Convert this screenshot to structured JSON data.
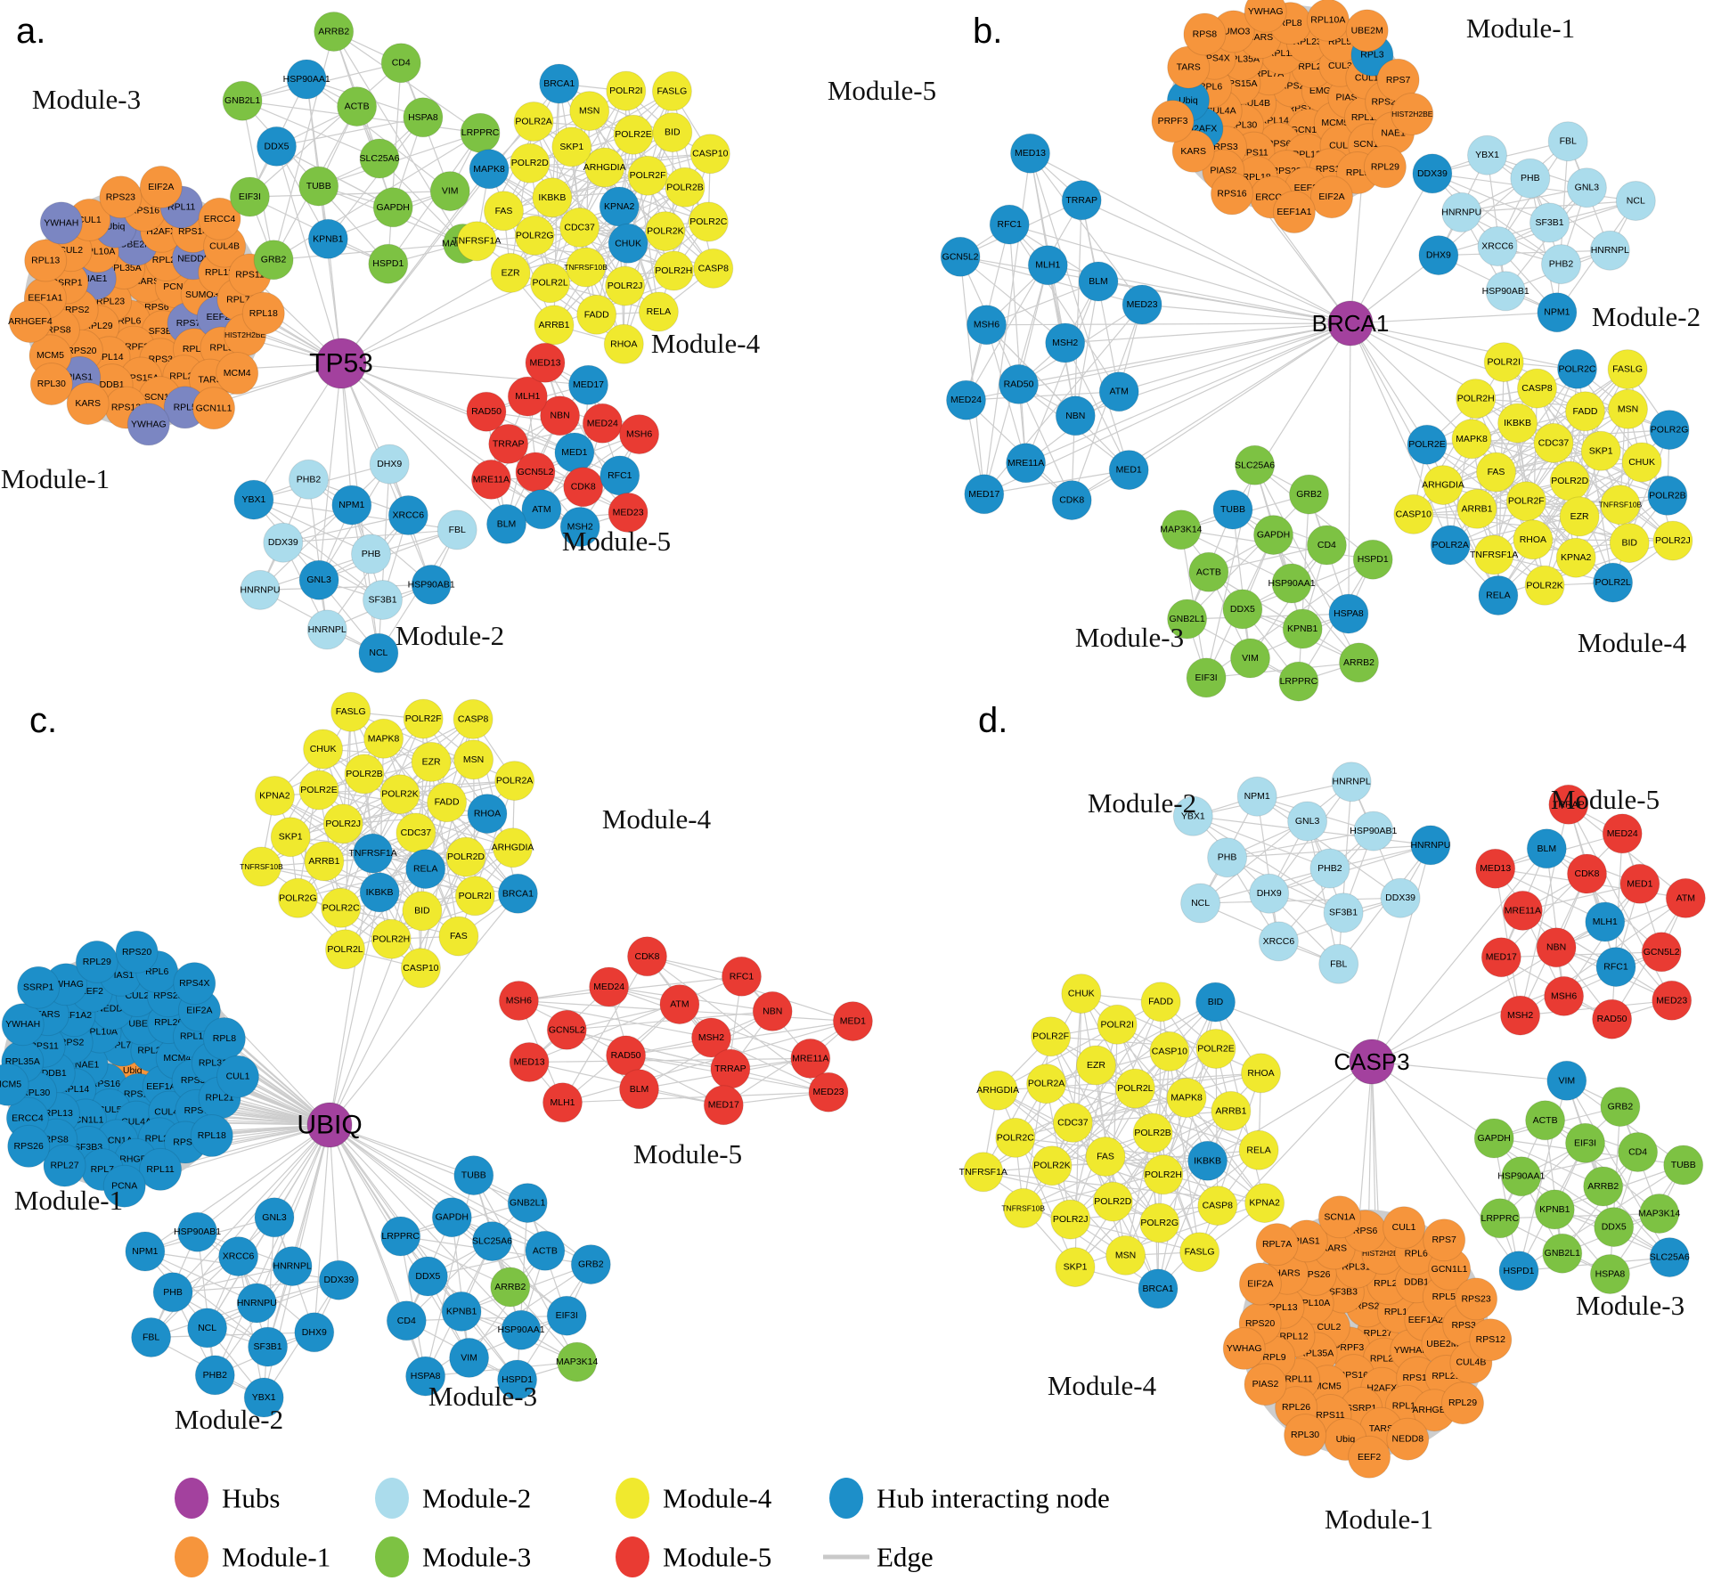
{
  "colors": {
    "hub": "#A3419E",
    "module1": "#F6953C",
    "module2": "#ABDCEC",
    "module3": "#7DC243",
    "module4": "#F0E92E",
    "module5": "#E93B33",
    "hubInt": "#1D8FC9",
    "slate": "#7B86C2",
    "edge": "#CDCDCD",
    "text": "#000000"
  },
  "figure": {
    "panels": [
      {
        "id": "a",
        "letter": "a.",
        "hub": "TP53",
        "modules": [
          {
            "key": "m1",
            "name": "Module-1",
            "color": "module1",
            "nodes": [
              "RPS6",
              "RPL6",
              "HARS",
              "SF3B3",
              "RPL23",
              "PCNA",
              "PRPF3",
              "RPL35A",
              "~RPS7",
              "RPL29",
              "RPL26",
              "RPS3",
              "~NAE1",
              "SUMO3",
              "RPL14",
              "~UBE2M",
              "RPL8",
              "RPS2",
              "~NEDD8",
              "RPS15A",
              "RPL10A",
              "~EEF2",
              "RPS20",
              "H2AFX",
              "RPL21",
              "SSRP1",
              "RPL12",
              "DDB1",
              "~Ubiq",
              "RPL9",
              "RPS8",
              "RPS14",
              "SCN1A",
              "CUL2",
              "RPL7",
              "~PIAS1",
              "RPS16",
              "TARS",
              "EEF1A1",
              "CUL4B",
              "RPS13",
              "CUL1",
              "HIST2H2BE",
              "MCM5",
              "~RPL11",
              "~RPL5",
              "RPL13",
              "RPS11",
              "KARS",
              "RPS23",
              "MCM4",
              "ARHGEF4",
              "ERCC4",
              "~YWHAG",
              "~YWHAH",
              "RPL18",
              "RPL30",
              "EIF2A",
              "GCN1L1"
            ]
          },
          {
            "key": "m2",
            "name": "Module-2",
            "color": "module2",
            "nodes": [
              "PHB",
              "*GNL3",
              "*NPM1",
              "SF3B1",
              "DDX39",
              "*XRCC6",
              "HNRNPL",
              "PHB2",
              "*HSP90AB1",
              "HNRNPU",
              "DHX9",
              "*NCL",
              "*YBX1",
              "FBL"
            ]
          },
          {
            "key": "m3",
            "name": "Module-3",
            "color": "module3",
            "nodes": [
              "SLC25A6",
              "TUBB",
              "ACTB",
              "GAPDH",
              "*DDX5",
              "HSPA8",
              "*KPNB1",
              "*HSP90AA1",
              "VIM",
              "EIF3I",
              "CD4",
              "HSPD1",
              "GNB2L1",
              "LRPPRC",
              "GRB2",
              "ARRB2",
              "MAP3K14"
            ]
          },
          {
            "key": "m4",
            "name": "Module-4",
            "color": "module4",
            "nodes": [
              "*KPNA2",
              "CDC37",
              "ARHGDIA",
              "*CHUK",
              "IKBKB",
              "POLR2F",
              "TNFRSF10B",
              "SKP1",
              "POLR2K",
              "POLR2G",
              "POLR2E",
              "POLR2J",
              "POLR2D",
              "POLR2B",
              "POLR2L",
              "MSN",
              "POLR2H",
              "FAS",
              "BID",
              "FADD",
              "POLR2A",
              "POLR2C",
              "EZR",
              "POLR2I",
              "RELA",
              "*MAPK8",
              "CASP10",
              "ARRB1",
              "*BRCA1",
              "CASP8",
              "TNFRSF1A",
              "FASLG",
              "RHOA"
            ]
          },
          {
            "key": "m5",
            "name": "Module-5",
            "color": "module5",
            "nodes": [
              "*MED1",
              "GCN5L2",
              "NBN",
              "CDK8",
              "TRRAP",
              "MED24",
              "*ATM",
              "MLH1",
              "*RFC1",
              "MRE11A",
              "*MED17",
              "*MSH2",
              "RAD50",
              "MSH6",
              "*BLM",
              "MED13",
              "MED23"
            ]
          }
        ]
      },
      {
        "id": "b",
        "letter": "b.",
        "hub": "BRCA1",
        "modules": [
          {
            "key": "m1",
            "name": "Module-1",
            "color": "module1",
            "nodes": [
              "RPS14",
              "RPL14",
              "RPS2",
              "GCN1L1",
              "CUL4B",
              "EMG1",
              "RPS6",
              "RPL7A",
              "MCM5",
              "RPL30",
              "RPL21",
              "RPL13",
              "RPS15A",
              "PIAS1",
              "RPS11",
              "RPL11",
              "CUL5",
              "CUL4A",
              "CUL3",
              "RPS23",
              "RPL35A",
              "RPL12",
              "RPS3",
              "RPL23",
              "RPS13",
              "RPL6",
              "CUL1",
              "RPL18",
              "HARS",
              "SCN1A",
              "*H2AFX",
              "RPL5",
              "EEF2",
              "RPS4X",
              "RPS26",
              "PIAS2",
              "RPL8",
              "RPL9",
              "*Ubiq",
              "*RPL3",
              "ERCC4",
              "SUMO3",
              "NAE1",
              "KARS",
              "RPL10A",
              "EIF2A",
              "TARS",
              "RPS7",
              "RPS16",
              "YWHAG",
              "RPL29",
              "PRPF3",
              "UBE2M",
              "EEF1A1",
              "RPS8",
              "HIST2H2BE"
            ]
          },
          {
            "key": "m2",
            "name": "Module-2",
            "color": "module2",
            "nodes": [
              "SF3B1",
              "XRCC6",
              "PHB",
              "PHB2",
              "HNRNPU",
              "GNL3",
              "HSP90AB1",
              "YBX1",
              "HNRNPL",
              "*DHX9",
              "FBL",
              "*NPM1",
              "*DDX39",
              "NCL"
            ]
          },
          {
            "key": "m3",
            "name": "Module-3",
            "color": "module3",
            "nodes": [
              "HSP90AA1",
              "DDX5",
              "GAPDH",
              "KPNB1",
              "ACTB",
              "CD4",
              "VIM",
              "*TUBB",
              "*HSPA8",
              "GNB2L1",
              "GRB2",
              "LRPPRC",
              "MAP3K14",
              "HSPD1",
              "EIF3I",
              "SLC25A6",
              "ARRB2"
            ]
          },
          {
            "key": "m4",
            "name": "Module-4",
            "color": "module4",
            "nodes": [
              "POLR2D",
              "POLR2F",
              "CDC37",
              "EZR",
              "FAS",
              "SKP1",
              "RHOA",
              "IKBKB",
              "TNFRSF10B",
              "ARRB1",
              "FADD",
              "KPNA2",
              "MAPK8",
              "CHUK",
              "TNFRSF1A",
              "CASP8",
              "BID",
              "ARHGDIA",
              "MSN",
              "POLR2K",
              "POLR2H",
              "*POLR2B",
              "*POLR2A",
              "*POLR2C",
              "*POLR2L",
              "*POLR2E",
              "*POLR2G",
              "*RELA",
              "POLR2I",
              "POLR2J",
              "CASP10",
              "FASLG"
            ]
          },
          {
            "key": "m5",
            "name": "Module-5",
            "color": "module5",
            "nodes": [
              "*MSH2",
              "*RAD50",
              "*MLH1",
              "*NBN",
              "*MSH6",
              "*BLM",
              "*MRE11A",
              "*RFC1",
              "*ATM",
              "*MED24",
              "*TRRAP",
              "*CDK8",
              "*GCN5L2",
              "*MED23",
              "*MED17",
              "*MED13",
              "*MED1"
            ]
          }
        ]
      },
      {
        "id": "c",
        "letter": "c.",
        "hub": "UBIQ",
        "modules": [
          {
            "key": "m1",
            "name": "Module-1",
            "color": "module1",
            "alt": "module1",
            "nodes": [
              "^Ubiq",
              "*RPS16",
              "*RPL7A",
              "*RPS13",
              "*NAE1",
              "*RPL24",
              "*CUL5",
              "*RPL10A",
              "*EEF1A1",
              "*RPL14",
              "*UBE2I",
              "*CUL4A",
              "*RPS2",
              "*MCM4",
              "*GCN1L1",
              "*NEDD8",
              "*CUL4B",
              "*DDB1",
              "*RPL26",
              "*SCN1A",
              "*EEF1A2",
              "*RPS3",
              "*RPL13",
              "*CUL2",
              "*RPL23",
              "*RPS11",
              "*RPL12",
              "*SF3B3",
              "*EEF2",
              "*RPS7",
              "*RPL30",
              "*RPS23",
              "*ARHGEF4",
              "*TARS",
              "*RPL31",
              "*RPS8",
              "*PIAS1",
              "*RPS6",
              "*RPL35A",
              "*EIF2A",
              "*RPL7",
              "*YWHAG",
              "*RPL21",
              "*ERCC4",
              "*RPL6",
              "*RPL11",
              "*YWHAH",
              "*RPL8",
              "*RPL27",
              "*RPL29",
              "*RPL18",
              "*MCM5",
              "*RPS4X",
              "*PCNA",
              "*SSRP1",
              "*CUL1",
              "*RPS26",
              "*RPS20"
            ]
          },
          {
            "key": "m2",
            "name": "Module-2",
            "color": "module2",
            "nodes": [
              "*HNRNPU",
              "*NCL",
              "*XRCC6",
              "*SF3B1",
              "*PHB",
              "*HNRNPL",
              "*PHB2",
              "*HSP90AB1",
              "*DHX9",
              "*FBL",
              "*GNL3",
              "*YBX1",
              "*NPM1",
              "*DDX39"
            ]
          },
          {
            "key": "m3",
            "name": "Module-3",
            "color": "module3",
            "alt": "module3",
            "nodes": [
              "^ARRB2",
              "*KPNB1",
              "*SLC25A6",
              "*HSP90AA1",
              "*DDX5",
              "*ACTB",
              "*VIM",
              "*GAPDH",
              "*EIF3I",
              "*CD4",
              "*GNB2L1",
              "*HSPD1",
              "*LRPPRC",
              "*GRB2",
              "*HSPA8",
              "*TUBB",
              "^MAP3K14"
            ]
          },
          {
            "key": "m4",
            "name": "Module-4",
            "color": "module4",
            "nodes": [
              "CDC37",
              "*TNFRSF1A",
              "POLR2K",
              "*RELA",
              "POLR2J",
              "FADD",
              "*IKBKB",
              "POLR2B",
              "POLR2D",
              "ARRB1",
              "EZR",
              "BID",
              "POLR2E",
              "*RHOA",
              "POLR2C",
              "MAPK8",
              "POLR2I",
              "SKP1",
              "MSN",
              "POLR2H",
              "CHUK",
              "ARHGDIA",
              "POLR2G",
              "POLR2F",
              "FAS",
              "KPNA2",
              "POLR2A",
              "POLR2L",
              "FASLG",
              "*BRCA1",
              "TNFRSF10B",
              "CASP8",
              "CASP10"
            ]
          },
          {
            "key": "m5",
            "name": "Module-5",
            "color": "module5",
            "nodes": [
              "MSH2",
              "RAD50",
              "ATM",
              "TRRAP",
              "GCN5L2",
              "NBN",
              "BLM",
              "MED24",
              "MRE11A",
              "MED13",
              "RFC1",
              "MED17",
              "MSH6",
              "MED1",
              "MLH1",
              "CDK8",
              "MED23"
            ]
          }
        ]
      },
      {
        "id": "d",
        "letter": "d.",
        "hub": "CASP3",
        "modules": [
          {
            "key": "m1",
            "name": "Module-1",
            "color": "module1",
            "nodes": [
              "RPL27",
              "PRPF3",
              "RPS2",
              "RPL23",
              "CUL2",
              "RPL14",
              "RPS16",
              "SF3B3",
              "YWHAH",
              "RPL35A",
              "RPL24",
              "H2AFX",
              "RPL10A",
              "EEF1A2",
              "MCM5",
              "RPL31",
              "RPS13",
              "RPL12",
              "DDB1",
              "SSRP1",
              "RPS26",
              "UBE2M",
              "RPL11",
              "HIST2H2BE",
              "RPL18",
              "RPL13",
              "RPL5",
              "RPS11",
              "KARS",
              "RPL21",
              "RPL9",
              "RPL6",
              "TARS",
              "HARS",
              "RPS3",
              "RPL26",
              "RPS6",
              "ARHGEF4",
              "RPS20",
              "GCN1L1",
              "Ubiq",
              "PIAS1",
              "CUL4B",
              "PIAS2",
              "CUL1",
              "NEDD8",
              "EIF2A",
              "RPS23",
              "RPL30",
              "SCN1A",
              "RPL29",
              "YWHAG",
              "RPS7",
              "EEF2",
              "RPL7A",
              "RPS12"
            ]
          },
          {
            "key": "m2",
            "name": "Module-2",
            "color": "module2",
            "nodes": [
              "PHB2",
              "DHX9",
              "GNL3",
              "SF3B1",
              "PHB",
              "HSP90AB1",
              "XRCC6",
              "NPM1",
              "DDX39",
              "NCL",
              "HNRNPL",
              "FBL",
              "YBX1",
              "*HNRNPU"
            ]
          },
          {
            "key": "m3",
            "name": "Module-3",
            "color": "module3",
            "nodes": [
              "ARRB2",
              "KPNB1",
              "EIF3I",
              "DDX5",
              "HSP90AA1",
              "CD4",
              "GNB2L1",
              "ACTB",
              "MAP3K14",
              "LRPPRC",
              "GRB2",
              "HSPA8",
              "GAPDH",
              "TUBB",
              "*HSPD1",
              "*VIM",
              "*SLC25A6"
            ]
          },
          {
            "key": "m4",
            "name": "Module-4",
            "color": "module4",
            "nodes": [
              "POLR2B",
              "FAS",
              "POLR2L",
              "POLR2H",
              "CDC37",
              "MAPK8",
              "POLR2D",
              "EZR",
              "*IKBKB",
              "POLR2K",
              "CASP10",
              "POLR2G",
              "POLR2A",
              "ARRB1",
              "POLR2J",
              "POLR2I",
              "CASP8",
              "POLR2C",
              "POLR2E",
              "MSN",
              "POLR2F",
              "RELA",
              "TNFRSF10B",
              "FADD",
              "FASLG",
              "ARHGDIA",
              "RHOA",
              "SKP1",
              "CHUK",
              "KPNA2",
              "TNFRSF1A",
              "*BID",
              "*BRCA1"
            ]
          },
          {
            "key": "m5",
            "name": "Module-5",
            "color": "module5",
            "nodes": [
              "*MLH1",
              "NBN",
              "CDK8",
              "*RFC1",
              "MRE11A",
              "MED1",
              "MSH6",
              "*BLM",
              "GCN5L2",
              "MED17",
              "MED24",
              "RAD50",
              "MED13",
              "ATM",
              "MSH2",
              "TRRAP",
              "MED23"
            ]
          }
        ]
      }
    ]
  },
  "legend": {
    "items": [
      {
        "label": "Hubs",
        "color": "hub"
      },
      {
        "label": "Module-1",
        "color": "module1"
      },
      {
        "label": "Module-2",
        "color": "module2"
      },
      {
        "label": "Module-3",
        "color": "module3"
      },
      {
        "label": "Module-4",
        "color": "module4"
      },
      {
        "label": "Module-5",
        "color": "module5"
      },
      {
        "label": "Hub interacting node",
        "color": "hubInt"
      },
      {
        "label": "Edge",
        "color": "edge",
        "type": "line"
      }
    ]
  }
}
